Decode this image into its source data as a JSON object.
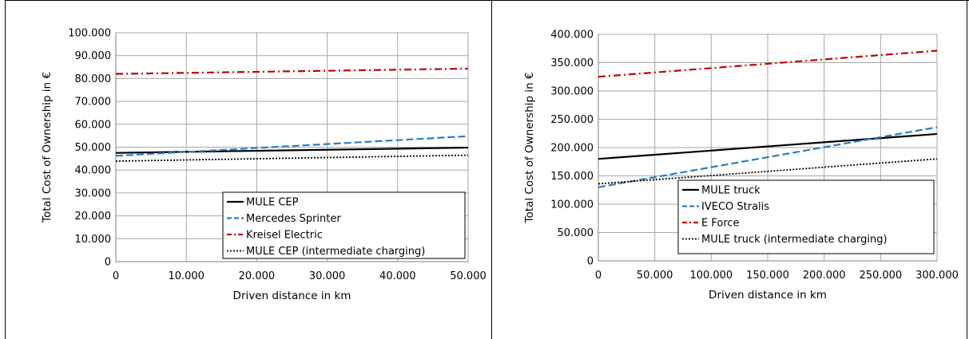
{
  "colors": {
    "black": "#000000",
    "blue": "#2e7dc3",
    "red": "#c00000"
  },
  "chart_data": [
    {
      "type": "line",
      "title": "",
      "xlabel": "Driven distance in km",
      "ylabel": "Total Cost of Ownership in €",
      "xlim": [
        0,
        50000
      ],
      "ylim": [
        0,
        100000
      ],
      "x_ticks": [
        0,
        10000,
        20000,
        30000,
        40000,
        50000
      ],
      "x_tick_labels": [
        "0",
        "10.000",
        "20.000",
        "30.000",
        "40.000",
        "50.000"
      ],
      "y_ticks": [
        0,
        10000,
        20000,
        30000,
        40000,
        50000,
        60000,
        70000,
        80000,
        90000,
        100000
      ],
      "y_tick_labels": [
        "0",
        "10.000",
        "20.000",
        "30.000",
        "40.000",
        "50.000",
        "60.000",
        "70.000",
        "80.000",
        "90.000",
        "100.000"
      ],
      "grid": true,
      "legend_position": "bottom-right",
      "series": [
        {
          "name": "MULE CEP",
          "style": "solid",
          "color": "#000000",
          "x": [
            0,
            50000
          ],
          "y": [
            47500,
            49800
          ]
        },
        {
          "name": "Mercedes Sprinter",
          "style": "dashed",
          "color": "#2e7dc3",
          "x": [
            0,
            50000
          ],
          "y": [
            46200,
            54800
          ]
        },
        {
          "name": "Kreisel Electric",
          "style": "dashdot",
          "color": "#c00000",
          "x": [
            0,
            50000
          ],
          "y": [
            82000,
            84300
          ]
        },
        {
          "name": "MULE CEP (intermediate charging)",
          "style": "dotted",
          "color": "#000000",
          "x": [
            0,
            50000
          ],
          "y": [
            43900,
            46500
          ]
        }
      ]
    },
    {
      "type": "line",
      "title": "",
      "xlabel": "Driven distance in km",
      "ylabel": "Total Cost of Ownership in €",
      "xlim": [
        0,
        300000
      ],
      "ylim": [
        0,
        400000
      ],
      "x_ticks": [
        0,
        50000,
        100000,
        150000,
        200000,
        250000,
        300000
      ],
      "x_tick_labels": [
        "0",
        "50.000",
        "100.000",
        "150.000",
        "200.000",
        "250.000",
        "300.000"
      ],
      "y_ticks": [
        0,
        50000,
        100000,
        150000,
        200000,
        250000,
        300000,
        350000,
        400000
      ],
      "y_tick_labels": [
        "0",
        "50.000",
        "100.000",
        "150.000",
        "200.000",
        "250.000",
        "300.000",
        "350.000",
        "400.000"
      ],
      "grid": true,
      "legend_position": "bottom-right",
      "series": [
        {
          "name": "MULE truck",
          "style": "solid",
          "color": "#000000",
          "x": [
            0,
            300000
          ],
          "y": [
            180000,
            224000
          ]
        },
        {
          "name": "IVECO Stralis",
          "style": "dashed",
          "color": "#2e7dc3",
          "x": [
            0,
            300000
          ],
          "y": [
            130000,
            236000
          ]
        },
        {
          "name": "E Force",
          "style": "dashdot",
          "color": "#c00000",
          "x": [
            0,
            300000
          ],
          "y": [
            325000,
            371000
          ]
        },
        {
          "name": "MULE truck (intermediate charging)",
          "style": "dotted",
          "color": "#000000",
          "x": [
            0,
            300000
          ],
          "y": [
            136000,
            180000
          ]
        }
      ]
    }
  ]
}
